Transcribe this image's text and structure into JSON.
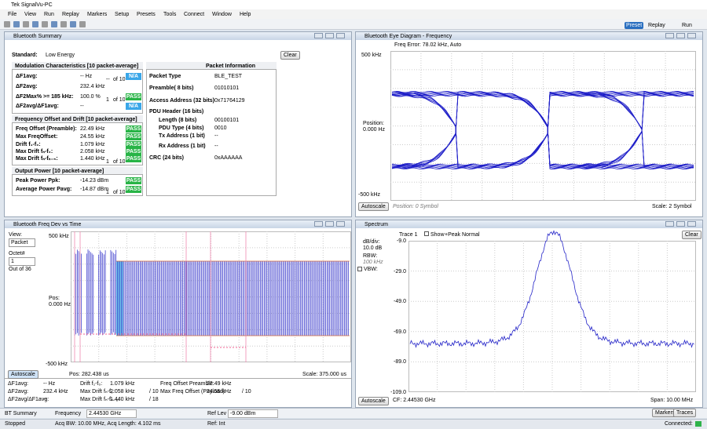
{
  "window": {
    "title": "Tek SignalVu-PC"
  },
  "menu": [
    "File",
    "View",
    "Run",
    "Replay",
    "Markers",
    "Setup",
    "Presets",
    "Tools",
    "Connect",
    "Window",
    "Help"
  ],
  "toolbar": {
    "preset": "Preset",
    "replay": "Replay",
    "run": "Run"
  },
  "summary": {
    "title": "Bluetooth Summary",
    "standard_label": "Standard:",
    "standard": "Low Energy",
    "clear": "Clear",
    "modulation": {
      "header": "Modulation Characteristics [10 packet-average]",
      "rows": [
        {
          "label": "ΔF1avg:",
          "value": "-- Hz",
          "count": "--",
          "of": "of 10",
          "status": "N/A"
        },
        {
          "label": "ΔF2avg:",
          "value": "232.4 kHz"
        },
        {
          "label": "ΔF2Max% >= 185 kHz:",
          "value": "100.0 %",
          "count": "1",
          "of": "of 10",
          "status": "PASS"
        },
        {
          "label": "ΔF2avg/ΔF1avg:",
          "value": "--",
          "status": "N/A"
        }
      ]
    },
    "drift": {
      "header": "Frequency Offset and Drift [10 packet-average]",
      "rows": [
        {
          "label": "Freq Offset (Preamble):",
          "value": "22.49 kHz",
          "status": "PASS"
        },
        {
          "label": "Max FreqOffset:",
          "value": "24.55 kHz",
          "status": "PASS"
        },
        {
          "label": "Drift f₁-f₀:",
          "value": "1.079 kHz",
          "status": "PASS"
        },
        {
          "label": "Max Drift fₙ-f₀:",
          "value": "2.058 kHz",
          "status": "PASS"
        },
        {
          "label": "Max Drift fₙ-fₙ₋₅:",
          "value": "1.440 kHz",
          "count": "1",
          "of": "of 10",
          "status": "PASS"
        }
      ]
    },
    "power": {
      "header": "Output Power [10 packet-average]",
      "rows": [
        {
          "label": "Peak Power Ppk:",
          "value": "-14.23 dBm",
          "status": "PASS"
        },
        {
          "label": "Average Power Pavg:",
          "value": "-14.87 dBm",
          "count": "1",
          "of": "of 10",
          "status": "PASS"
        }
      ]
    },
    "packet": {
      "header": "Packet Information",
      "rows": [
        {
          "label": "Packet Type",
          "value": "BLE_TEST"
        },
        {
          "label": "Preamble( 8 bits)",
          "value": "01010101"
        },
        {
          "label": "Access Address (32 bits)",
          "value": "0x71764129"
        },
        {
          "label": "PDU Header (16 bits)"
        },
        {
          "label": "Length (8 bits)",
          "value": "00100101"
        },
        {
          "label": "PDU Type (4 bits)",
          "value": "0010"
        },
        {
          "label": "Tx Address (1 bit)",
          "value": "--"
        },
        {
          "label": "Rx Address (1 bit)",
          "value": "--"
        },
        {
          "label": "CRC (24 bits)",
          "value": "0xAAAAAA"
        }
      ]
    }
  },
  "eye": {
    "title": "Bluetooth Eye Diagram - Frequency",
    "freq_error": "Freq Error: 78.02 kHz, Auto",
    "top": "500 kHz",
    "pos_label": "Position:",
    "pos": "0.000 Hz",
    "bottom": "-500 kHz",
    "autoscale": "Autoscale",
    "position": "Position:  0 Symbol",
    "scale": "Scale:  2 Symbol"
  },
  "freqdev": {
    "title": "Bluetooth Freq Dev vs Time",
    "view_label": "View:",
    "view": "Packet",
    "octet_label": "Octet#",
    "octet": "1",
    "octet_total": "Out of 36",
    "top": "500 kHz",
    "pos_label": "Pos:",
    "pos": "0.000 Hz",
    "bottom": "-500 kHz",
    "autoscale": "Autoscale",
    "position": "Pos:  282.438 us",
    "scale": "Scale:  375.000 us",
    "table": [
      {
        "a": "ΔF1avg:",
        "b": "-- Hz",
        "c": "Drift f₁-f₀:",
        "d": "1.079 kHz",
        "f": "Freq Offset Preamble:",
        "g": "22.49 kHz"
      },
      {
        "a": "ΔF2avg:",
        "b": "232.4 kHz",
        "c": "Max Drift fₙ-f₀:",
        "d": "2.058 kHz",
        "e": "/ 10",
        "f": "Max Freq Offset (Payload):",
        "g": "24.55 kHz",
        "h": "/ 10"
      },
      {
        "a": "ΔF2avg/ΔF1avg:",
        "b": "--",
        "c": "Max Drift fₙ-fₙ₋₅:",
        "d": "1.440 kHz",
        "e": "/ 18"
      }
    ]
  },
  "spectrum": {
    "title": "Spectrum",
    "trace": "Trace 1",
    "show": "Show",
    "detector": "+Peak Normal",
    "clear": "Clear",
    "dbdiv_label": "dB/div:",
    "dbdiv": "10.0 dB",
    "rbw_label": "RBW:",
    "rbw": "100 kHz",
    "vbw_label": "VBW:",
    "ylabels": [
      "-9.0",
      "-29.0",
      "-49.0",
      "-69.0",
      "-89.0",
      "-109.0"
    ],
    "autoscale": "Autoscale",
    "cf": "CF: 2.44530 GHz",
    "span": "Span: 10.00 MHz"
  },
  "status": {
    "mode": "BT Summary",
    "freq_label": "Frequency",
    "freq": "2.44530 GHz",
    "ref_label": "Ref Lev",
    "ref": "-9.00 dBm",
    "markers": "Markers",
    "traces": "Traces",
    "state": "Stopped",
    "acq": "Acq BW: 10.00 MHz, Acq Length: 4.102 ms",
    "ref_src": "Ref: Int",
    "connected": "Connected:"
  }
}
